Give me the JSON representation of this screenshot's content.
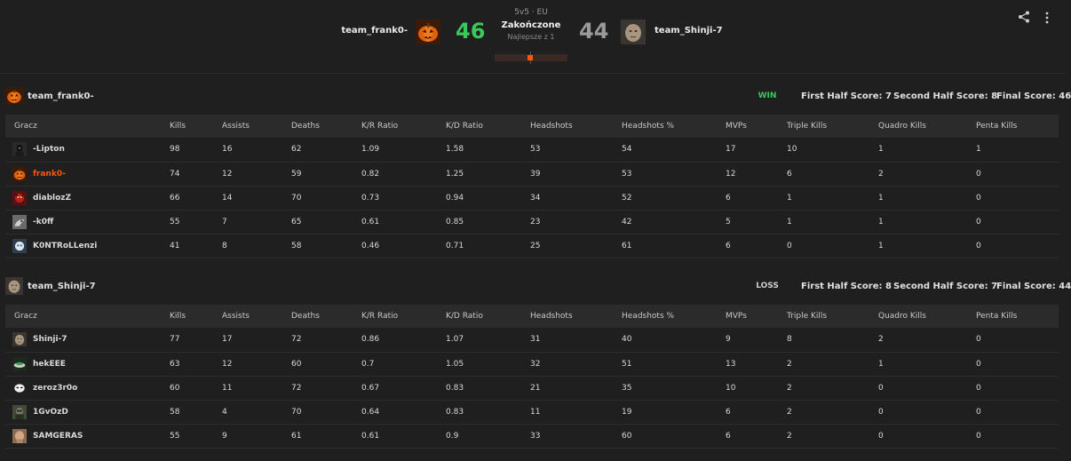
{
  "match": {
    "mode": "5v5 · EU",
    "status": "Zakończone",
    "best_of": "Najlepsze z 1",
    "team1": {
      "name": "team_frank0-",
      "score": "46"
    },
    "team2": {
      "name": "team_Shinji-7",
      "score": "44"
    }
  },
  "header_icons": [
    "share-icon",
    "more-vertical-icon"
  ],
  "colors": {
    "win": "#3ac95a",
    "accent": "#ff5500",
    "lose": "#9a9a9a",
    "background": "#1f1f1f"
  },
  "columns": [
    "Gracz",
    "Kills",
    "Assists",
    "Deaths",
    "K/R Ratio",
    "K/D Ratio",
    "Headshots",
    "Headshots %",
    "MVPs",
    "Triple Kills",
    "Quadro Kills",
    "Penta Kills"
  ],
  "teams": [
    {
      "name": "team_frank0-",
      "result": "WIN",
      "first_half": "First Half Score: 7",
      "second_half": "Second Half Score: 8",
      "final": "Final Score: 46",
      "players": [
        {
          "name": "-Lipton",
          "stats": [
            "98",
            "16",
            "62",
            "1.09",
            "1.58",
            "53",
            "54",
            "17",
            "10",
            "1",
            "1"
          ]
        },
        {
          "name": "frank0-",
          "stats": [
            "74",
            "12",
            "59",
            "0.82",
            "1.25",
            "39",
            "53",
            "12",
            "6",
            "2",
            "0"
          ]
        },
        {
          "name": "diablozZ",
          "stats": [
            "66",
            "14",
            "70",
            "0.73",
            "0.94",
            "34",
            "52",
            "6",
            "1",
            "1",
            "0"
          ]
        },
        {
          "name": "-k0ff",
          "stats": [
            "55",
            "7",
            "65",
            "0.61",
            "0.85",
            "23",
            "42",
            "5",
            "1",
            "1",
            "0"
          ]
        },
        {
          "name": "K0NTRoLLenzi",
          "stats": [
            "41",
            "8",
            "58",
            "0.46",
            "0.71",
            "25",
            "61",
            "6",
            "0",
            "1",
            "0"
          ]
        }
      ]
    },
    {
      "name": "team_Shinji-7",
      "result": "LOSS",
      "first_half": "First Half Score: 8",
      "second_half": "Second Half Score: 7",
      "final": "Final Score: 44",
      "players": [
        {
          "name": "Shinji-7",
          "stats": [
            "77",
            "17",
            "72",
            "0.86",
            "1.07",
            "31",
            "40",
            "9",
            "8",
            "2",
            "0"
          ]
        },
        {
          "name": "hekEEE",
          "stats": [
            "63",
            "12",
            "60",
            "0.7",
            "1.05",
            "32",
            "51",
            "13",
            "2",
            "1",
            "0"
          ]
        },
        {
          "name": "zeroz3r0o",
          "stats": [
            "60",
            "11",
            "72",
            "0.67",
            "0.83",
            "21",
            "35",
            "10",
            "2",
            "0",
            "0"
          ]
        },
        {
          "name": "1GvOzD",
          "stats": [
            "58",
            "4",
            "70",
            "0.64",
            "0.83",
            "11",
            "19",
            "6",
            "2",
            "0",
            "0"
          ]
        },
        {
          "name": "SAMGERAS",
          "stats": [
            "55",
            "9",
            "61",
            "0.61",
            "0.9",
            "33",
            "60",
            "6",
            "2",
            "0",
            "0"
          ]
        }
      ]
    }
  ]
}
